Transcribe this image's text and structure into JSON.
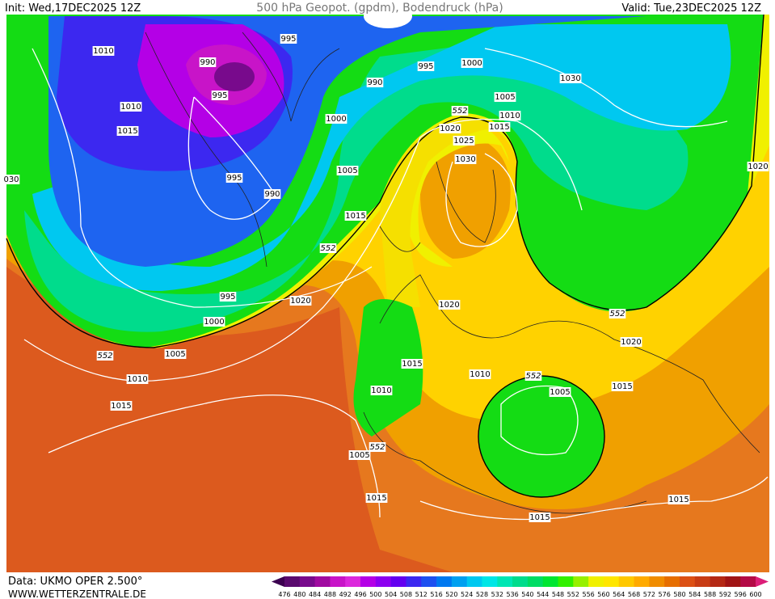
{
  "header": {
    "init": "Init: Wed,17DEC2025 12Z",
    "title": "500 hPa Geopot. (gpdm), Bodendruck (hPa)",
    "valid": "Valid: Tue,23DEC2025 12Z"
  },
  "isobar_labels": [
    "1010",
    "990",
    "995",
    "995",
    "1010",
    "1015",
    "990",
    "995",
    "1000",
    "1030",
    "1005",
    "552",
    "1010",
    "1015",
    "1020",
    "1025",
    "1030",
    "1000",
    "1005",
    "995",
    "990",
    "1015",
    "552",
    "1020",
    "030",
    "995",
    "1020",
    "1000",
    "552",
    "1005",
    "1010",
    "1015",
    "1020",
    "552",
    "1020",
    "1015",
    "1010",
    "552",
    "1005",
    "1015",
    "1010",
    "552",
    "1005",
    "1015",
    "1015",
    "1015"
  ],
  "colorbar": {
    "labels": [
      "476",
      "480",
      "484",
      "488",
      "492",
      "496",
      "500",
      "504",
      "508",
      "512",
      "516",
      "520",
      "524",
      "528",
      "532",
      "536",
      "540",
      "544",
      "548",
      "552",
      "556",
      "560",
      "564",
      "568",
      "572",
      "576",
      "580",
      "584",
      "588",
      "592",
      "596",
      "600"
    ]
  },
  "footer": {
    "source": "Data: UKMO OPER 2.500°",
    "website": "WWW.WETTERZENTRALE.DE"
  }
}
